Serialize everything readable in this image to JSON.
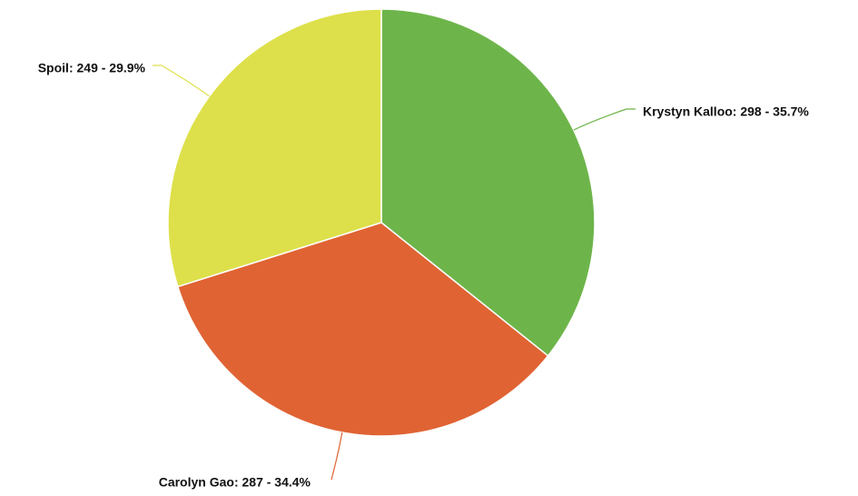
{
  "chart_data": {
    "type": "pie",
    "values": [
      298,
      287,
      249
    ],
    "value_labels": [
      "Krystyn Kalloo: 298 - 35.7%",
      "Carolyn Gao: 287 - 34.4%",
      "Spoil: 249 - 29.9%"
    ],
    "colors": [
      "#6db54a",
      "#e06333",
      "#dde04a"
    ]
  }
}
